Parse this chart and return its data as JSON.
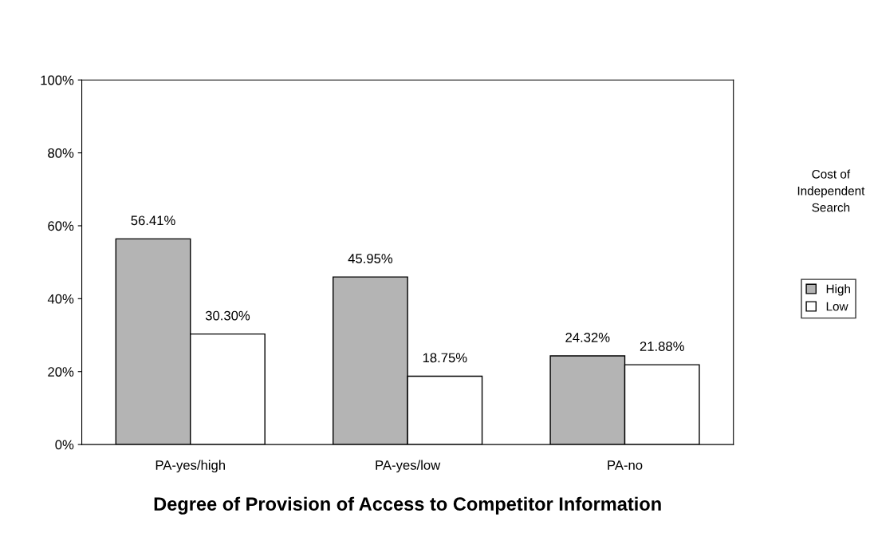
{
  "chart_data": {
    "type": "bar",
    "xlabel": "Degree of Provision of Access to Competitor Information",
    "categories": [
      "PA-yes/high",
      "PA-yes/low",
      "PA-no"
    ],
    "series": [
      {
        "name": "High",
        "color": "#b4b4b4",
        "values": [
          56.41,
          45.95,
          24.32
        ],
        "value_labels": [
          "56.41%",
          "45.95%",
          "24.32%"
        ]
      },
      {
        "name": "Low",
        "color": "#ffffff",
        "values": [
          30.3,
          18.75,
          21.88
        ],
        "value_labels": [
          "30.30%",
          "18.75%",
          "21.88%"
        ]
      }
    ],
    "ylim": [
      0,
      100
    ],
    "yticks": [
      {
        "value": 0,
        "label": "0%"
      },
      {
        "value": 20,
        "label": "20%"
      },
      {
        "value": 40,
        "label": "40%"
      },
      {
        "value": 60,
        "label": "60%"
      },
      {
        "value": 80,
        "label": "80%"
      },
      {
        "value": 100,
        "label": "100%"
      }
    ],
    "legend_title": "Cost of\nIndependent\nSearch",
    "legend": "right",
    "grid": false
  }
}
